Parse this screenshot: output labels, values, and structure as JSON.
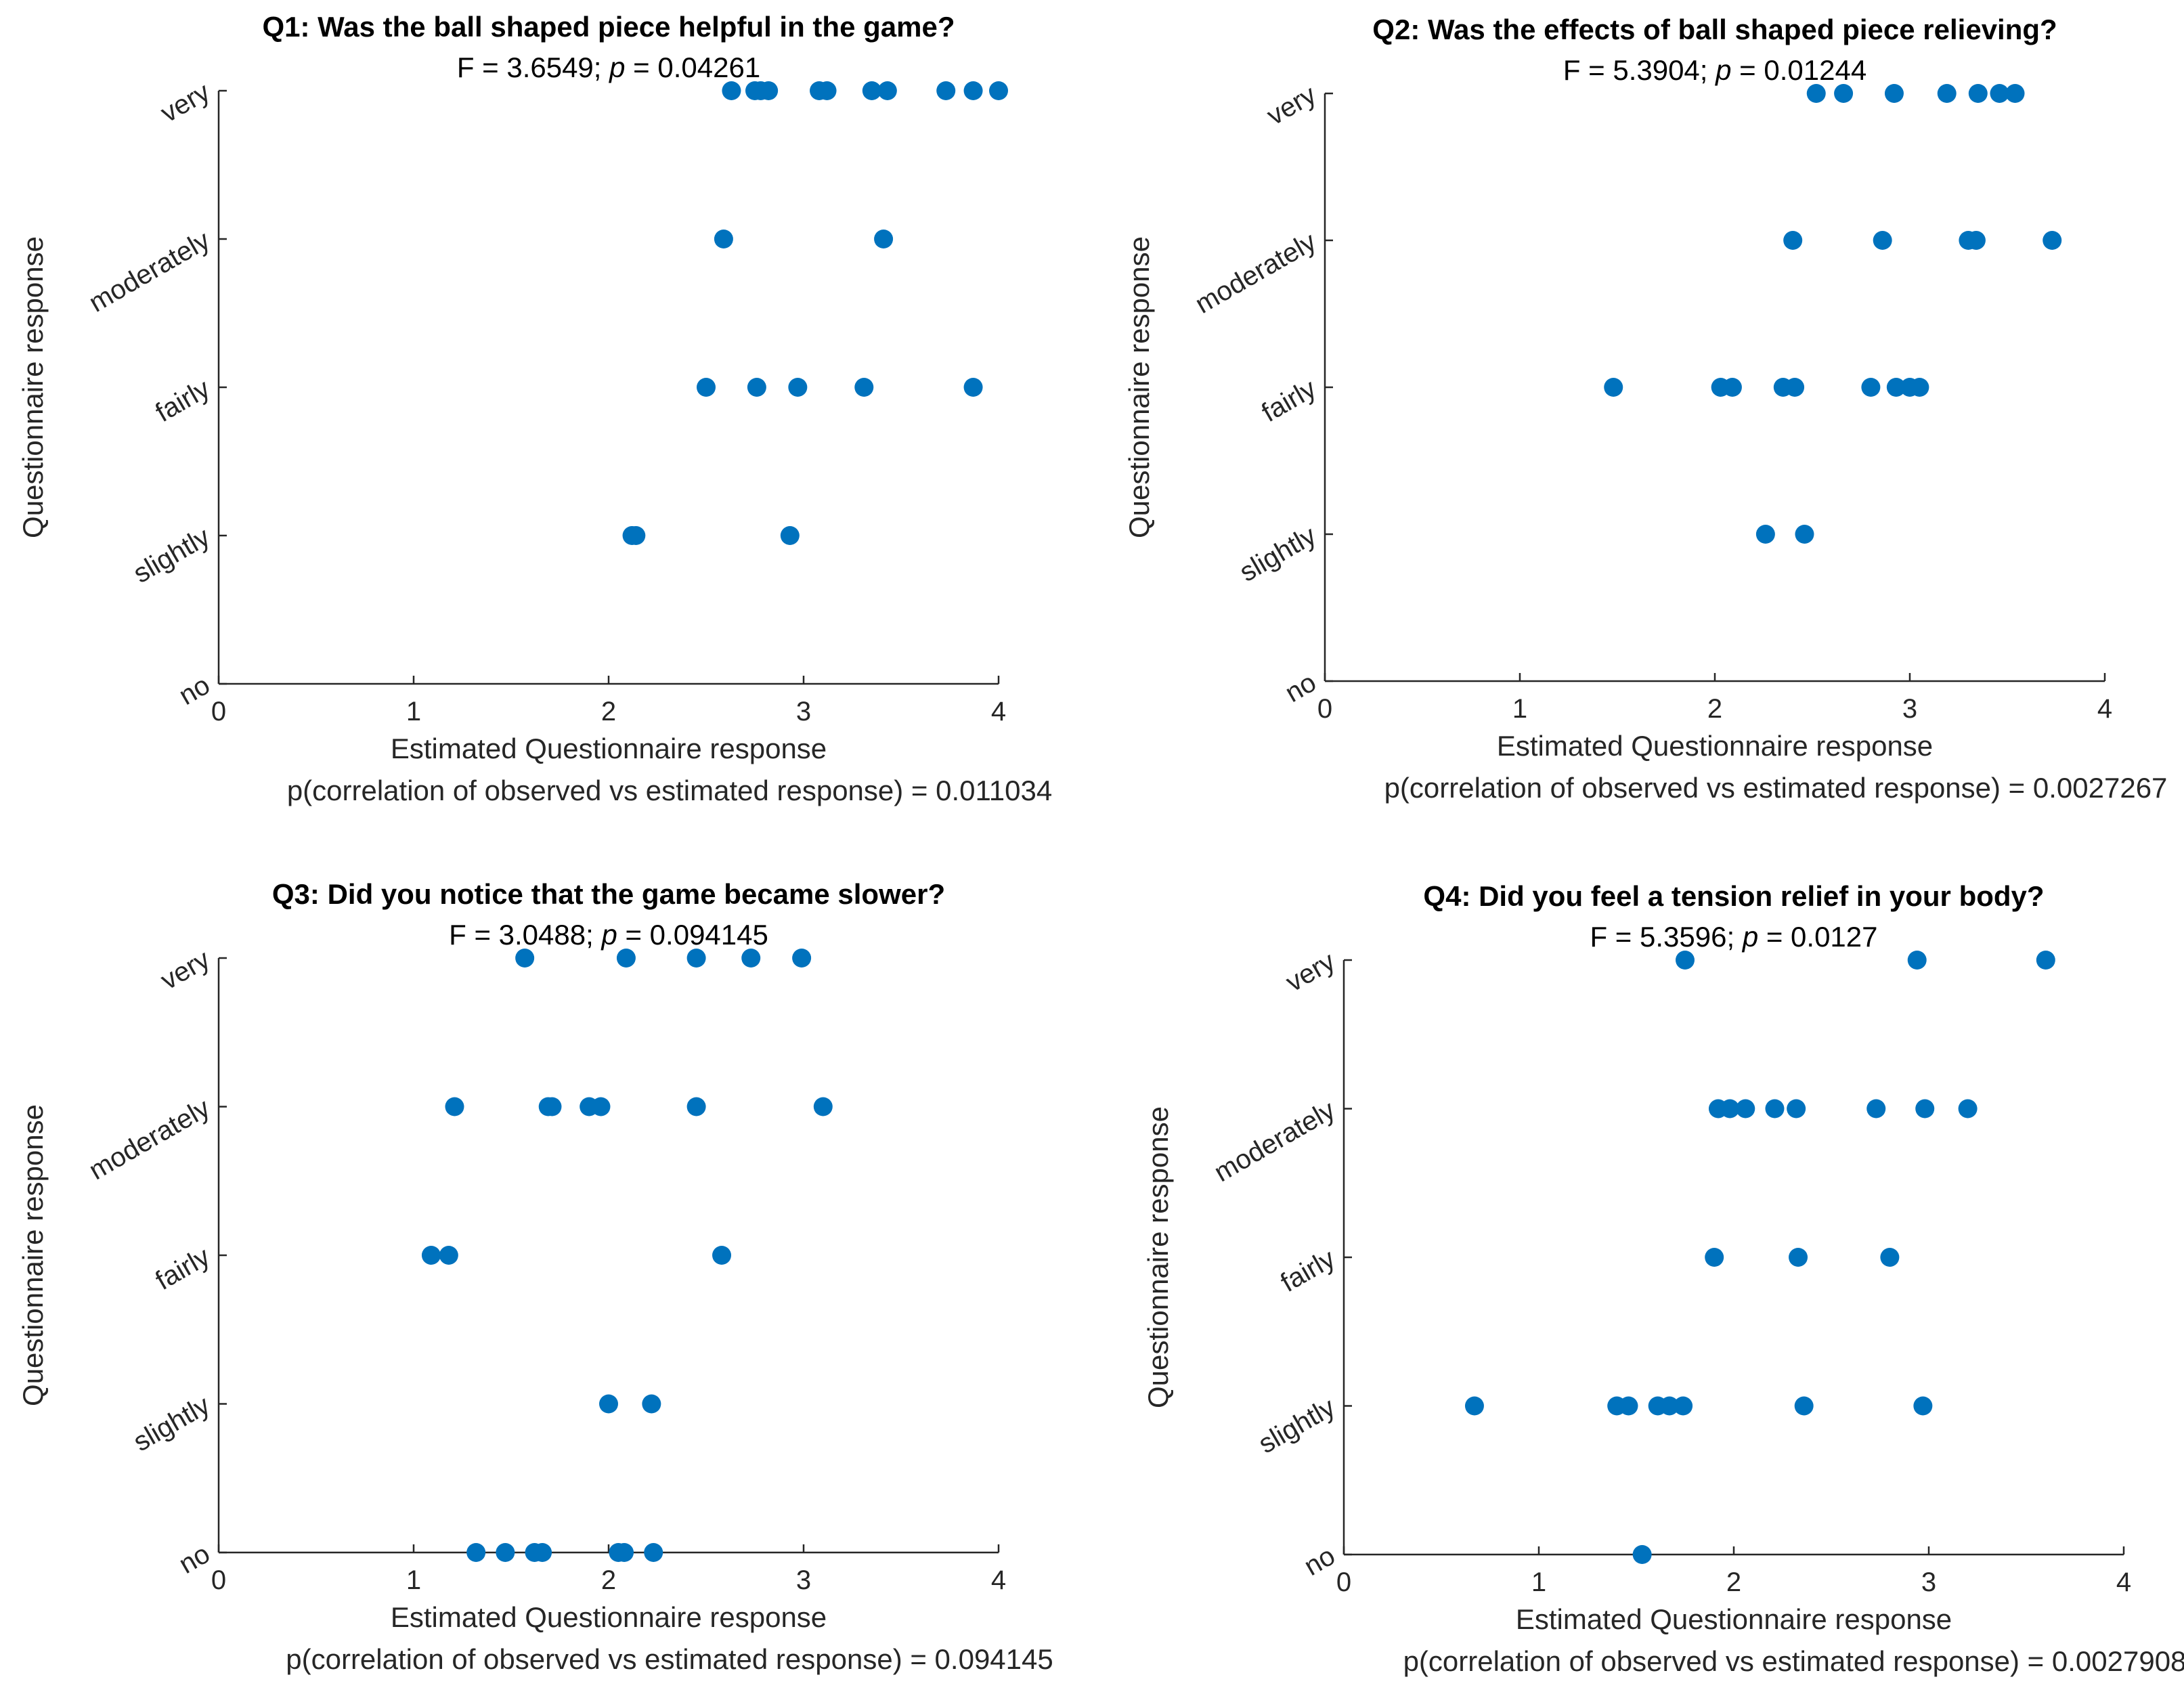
{
  "chart_data": [
    {
      "type": "scatter",
      "title": "Q1: Was the ball shaped piece helpful in the game?",
      "f_label": "F = 3.6549",
      "p_label": "p",
      "p_value": "= 0.04261",
      "xlabel": "Estimated Questionnaire response",
      "ylabel": "Questionnaire response",
      "footer": "p(correlation of observed vs estimated response) = 0.011034",
      "xlim": [
        0,
        4
      ],
      "ylim": [
        0,
        4
      ],
      "xticks": [
        "0",
        "1",
        "2",
        "3",
        "4"
      ],
      "yticks": [
        "no",
        "slightly",
        "fairly",
        "moderately",
        "very"
      ],
      "points": [
        {
          "x": 2.63,
          "y": 4
        },
        {
          "x": 2.75,
          "y": 4
        },
        {
          "x": 2.78,
          "y": 4
        },
        {
          "x": 2.82,
          "y": 4
        },
        {
          "x": 3.08,
          "y": 4
        },
        {
          "x": 3.12,
          "y": 4
        },
        {
          "x": 3.35,
          "y": 4
        },
        {
          "x": 3.43,
          "y": 4
        },
        {
          "x": 3.73,
          "y": 4
        },
        {
          "x": 3.87,
          "y": 4
        },
        {
          "x": 4.0,
          "y": 4
        },
        {
          "x": 2.59,
          "y": 3
        },
        {
          "x": 3.41,
          "y": 3
        },
        {
          "x": 2.5,
          "y": 2
        },
        {
          "x": 2.76,
          "y": 2
        },
        {
          "x": 2.97,
          "y": 2
        },
        {
          "x": 3.31,
          "y": 2
        },
        {
          "x": 3.87,
          "y": 2
        },
        {
          "x": 2.12,
          "y": 1
        },
        {
          "x": 2.14,
          "y": 1
        },
        {
          "x": 2.93,
          "y": 1
        }
      ]
    },
    {
      "type": "scatter",
      "title": "Q2: Was the effects of ball shaped piece relieving?",
      "f_label": "F = 5.3904",
      "p_label": "p",
      "p_value": "= 0.01244",
      "xlabel": "Estimated Questionnaire response",
      "ylabel": "Questionnaire response",
      "footer": "p(correlation of observed vs estimated response) = 0.0027267",
      "xlim": [
        0,
        4
      ],
      "ylim": [
        0,
        4
      ],
      "xticks": [
        "0",
        "1",
        "2",
        "3",
        "4"
      ],
      "yticks": [
        "no",
        "slightly",
        "fairly",
        "moderately",
        "very"
      ],
      "points": [
        {
          "x": 2.52,
          "y": 4
        },
        {
          "x": 2.66,
          "y": 4
        },
        {
          "x": 2.92,
          "y": 4
        },
        {
          "x": 3.19,
          "y": 4
        },
        {
          "x": 3.35,
          "y": 4
        },
        {
          "x": 3.46,
          "y": 4
        },
        {
          "x": 3.54,
          "y": 4
        },
        {
          "x": 2.4,
          "y": 3
        },
        {
          "x": 2.86,
          "y": 3
        },
        {
          "x": 3.3,
          "y": 3
        },
        {
          "x": 3.34,
          "y": 3
        },
        {
          "x": 3.73,
          "y": 3
        },
        {
          "x": 1.48,
          "y": 2
        },
        {
          "x": 2.03,
          "y": 2
        },
        {
          "x": 2.09,
          "y": 2
        },
        {
          "x": 2.35,
          "y": 2
        },
        {
          "x": 2.41,
          "y": 2
        },
        {
          "x": 2.8,
          "y": 2
        },
        {
          "x": 2.93,
          "y": 2
        },
        {
          "x": 3.0,
          "y": 2
        },
        {
          "x": 3.05,
          "y": 2
        },
        {
          "x": 2.26,
          "y": 1
        },
        {
          "x": 2.46,
          "y": 1
        }
      ]
    },
    {
      "type": "scatter",
      "title": "Q3: Did you notice that the game became slower?",
      "f_label": "F = 3.0488",
      "p_label": "p",
      "p_value": "= 0.094145",
      "xlabel": "Estimated Questionnaire response",
      "ylabel": "Questionnaire response",
      "footer": "p(correlation of observed vs estimated response) = 0.094145",
      "xlim": [
        0,
        4
      ],
      "ylim": [
        0,
        4
      ],
      "xticks": [
        "0",
        "1",
        "2",
        "3",
        "4"
      ],
      "yticks": [
        "no",
        "slightly",
        "fairly",
        "moderately",
        "very"
      ],
      "points": [
        {
          "x": 1.57,
          "y": 4
        },
        {
          "x": 2.09,
          "y": 4
        },
        {
          "x": 2.45,
          "y": 4
        },
        {
          "x": 2.73,
          "y": 4
        },
        {
          "x": 2.99,
          "y": 4
        },
        {
          "x": 1.21,
          "y": 3
        },
        {
          "x": 1.69,
          "y": 3
        },
        {
          "x": 1.71,
          "y": 3
        },
        {
          "x": 1.9,
          "y": 3
        },
        {
          "x": 1.96,
          "y": 3
        },
        {
          "x": 2.45,
          "y": 3
        },
        {
          "x": 3.1,
          "y": 3
        },
        {
          "x": 1.09,
          "y": 2
        },
        {
          "x": 1.18,
          "y": 2
        },
        {
          "x": 2.58,
          "y": 2
        },
        {
          "x": 2.0,
          "y": 1
        },
        {
          "x": 2.22,
          "y": 1
        },
        {
          "x": 1.32,
          "y": 0
        },
        {
          "x": 1.47,
          "y": 0
        },
        {
          "x": 1.62,
          "y": 0
        },
        {
          "x": 1.66,
          "y": 0
        },
        {
          "x": 2.05,
          "y": 0
        },
        {
          "x": 2.08,
          "y": 0
        },
        {
          "x": 2.23,
          "y": 0
        }
      ]
    },
    {
      "type": "scatter",
      "title": "Q4: Did you feel a tension relief in your body?",
      "f_label": "F = 5.3596",
      "p_label": "p",
      "p_value": "= 0.0127",
      "xlabel": "Estimated Questionnaire response",
      "ylabel": "Questionnaire response",
      "footer": "p(correlation of observed vs estimated response) = 0.0027908",
      "xlim": [
        0,
        4
      ],
      "ylim": [
        0,
        4
      ],
      "xticks": [
        "0",
        "1",
        "2",
        "3",
        "4"
      ],
      "yticks": [
        "no",
        "slightly",
        "fairly",
        "moderately",
        "very"
      ],
      "points": [
        {
          "x": 1.75,
          "y": 4
        },
        {
          "x": 2.94,
          "y": 4
        },
        {
          "x": 3.6,
          "y": 4
        },
        {
          "x": 1.92,
          "y": 3
        },
        {
          "x": 1.98,
          "y": 3
        },
        {
          "x": 2.06,
          "y": 3
        },
        {
          "x": 2.21,
          "y": 3
        },
        {
          "x": 2.32,
          "y": 3
        },
        {
          "x": 2.73,
          "y": 3
        },
        {
          "x": 2.98,
          "y": 3
        },
        {
          "x": 3.2,
          "y": 3
        },
        {
          "x": 1.9,
          "y": 2
        },
        {
          "x": 2.33,
          "y": 2
        },
        {
          "x": 2.8,
          "y": 2
        },
        {
          "x": 0.67,
          "y": 1
        },
        {
          "x": 1.4,
          "y": 1
        },
        {
          "x": 1.46,
          "y": 1
        },
        {
          "x": 1.61,
          "y": 1
        },
        {
          "x": 1.67,
          "y": 1
        },
        {
          "x": 1.74,
          "y": 1
        },
        {
          "x": 2.36,
          "y": 1
        },
        {
          "x": 2.97,
          "y": 1
        },
        {
          "x": 1.53,
          "y": 0
        }
      ]
    }
  ]
}
